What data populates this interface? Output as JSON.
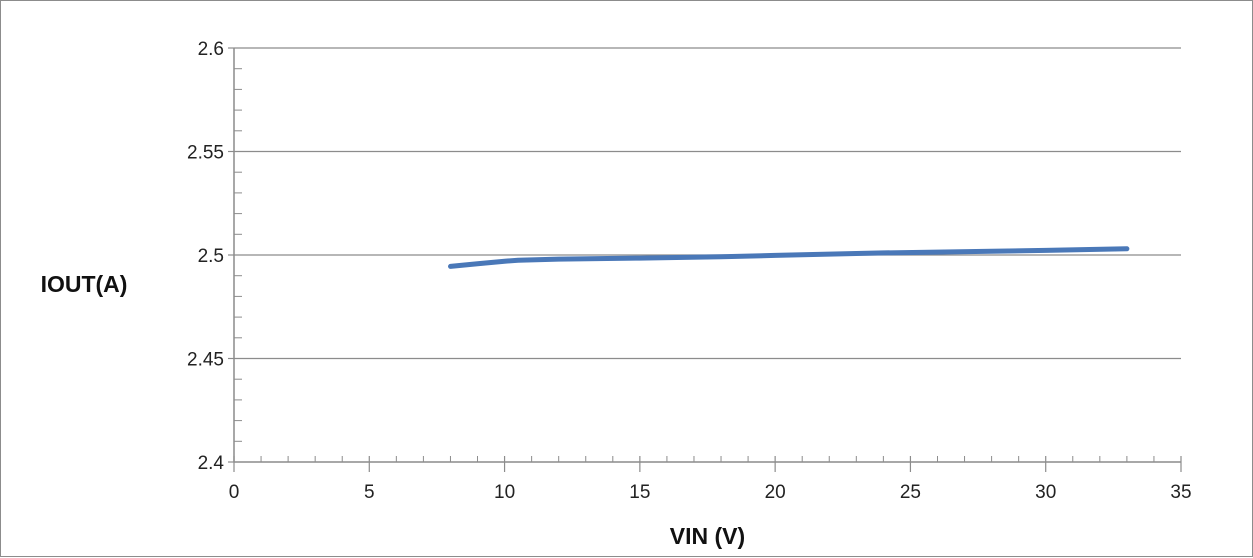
{
  "chart_data": {
    "type": "line",
    "title": "",
    "xlabel": "VIN (V)",
    "ylabel": "IOUT(A)",
    "xlim": [
      0,
      35
    ],
    "ylim": [
      2.4,
      2.6
    ],
    "x_ticks": [
      "0",
      "5",
      "10",
      "15",
      "20",
      "25",
      "30",
      "35"
    ],
    "y_ticks": [
      "2.4",
      "2.45",
      "2.5",
      "2.55",
      "2.6"
    ],
    "x_minor_step": 1,
    "y_minor_step": 0.01,
    "grid": "horizontal major",
    "legend": "none",
    "colors": {
      "line": "#4a78b8",
      "grid": "#8c8c8c",
      "axis": "#8c8c8c"
    },
    "series": [
      {
        "x": [
          8,
          9,
          10,
          10.5,
          12,
          15,
          18,
          20,
          24,
          28,
          30,
          33
        ],
        "y": [
          2.4945,
          2.4958,
          2.497,
          2.4975,
          2.498,
          2.4985,
          2.4992,
          2.4998,
          2.501,
          2.5018,
          2.5022,
          2.503
        ]
      }
    ]
  }
}
